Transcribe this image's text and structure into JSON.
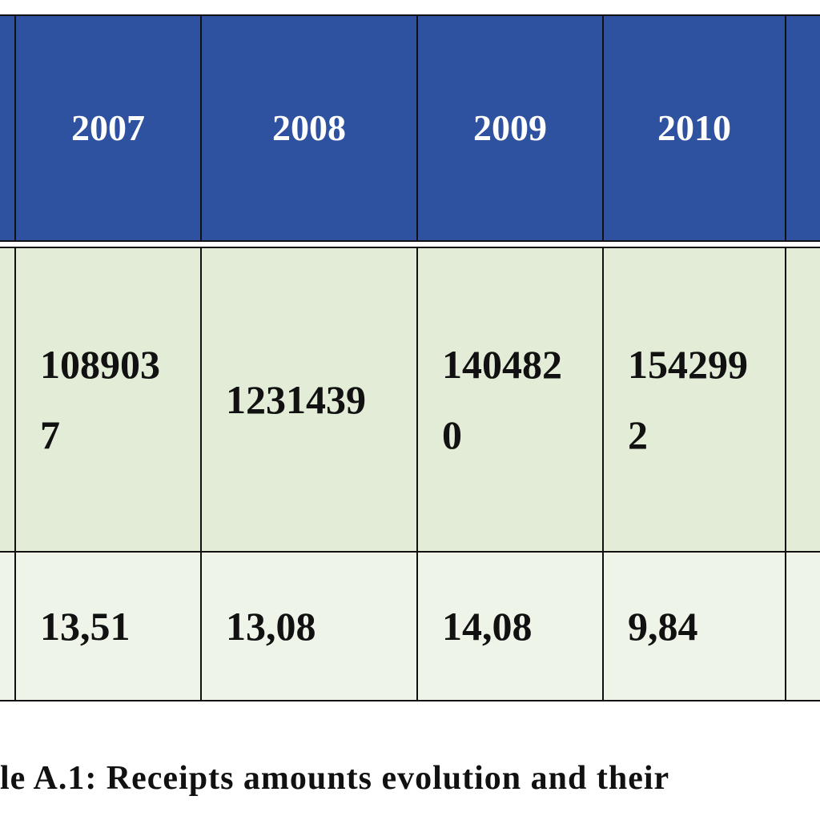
{
  "table": {
    "header": [
      "2007",
      "2008",
      "2009",
      "2010"
    ],
    "rows": [
      [
        "1089037",
        "1231439",
        "1404820",
        "1542992"
      ],
      [
        "13,51",
        "13,08",
        "14,08",
        "9,84"
      ]
    ]
  },
  "caption": "le A.1: Receipts amounts evolution and their"
}
